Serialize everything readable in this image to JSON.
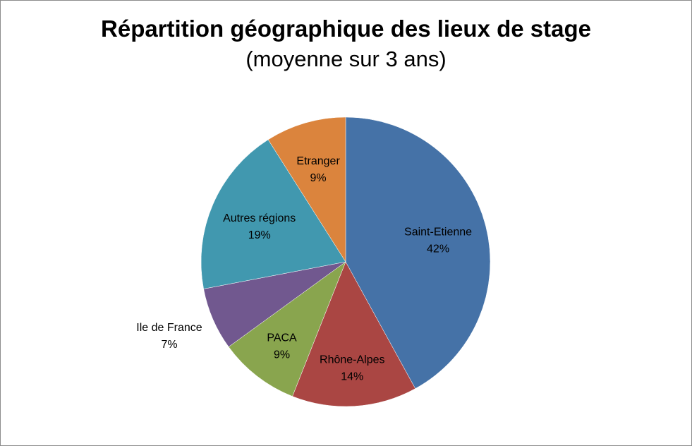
{
  "chart_data": {
    "type": "pie",
    "title": "Répartition géographique des lieux de stage",
    "subtitle": "(moyenne sur 3 ans)",
    "slices": [
      {
        "label": "Saint-Etienne",
        "value": 42,
        "pct": "42%",
        "color": "#4572A7"
      },
      {
        "label": "Rhône-Alpes",
        "value": 14,
        "pct": "14%",
        "color": "#AA4643"
      },
      {
        "label": "PACA",
        "value": 9,
        "pct": "9%",
        "color": "#89A54E"
      },
      {
        "label": "Ile de France",
        "value": 7,
        "pct": "7%",
        "color": "#71588F"
      },
      {
        "label": "Autres régions",
        "value": 19,
        "pct": "19%",
        "color": "#4198AF"
      },
      {
        "label": "Etranger",
        "value": 9,
        "pct": "9%",
        "color": "#DB843D"
      }
    ],
    "start_angle": "12 o'clock",
    "direction": "clockwise",
    "legend": "none",
    "border_color": "#8c8c8c"
  }
}
